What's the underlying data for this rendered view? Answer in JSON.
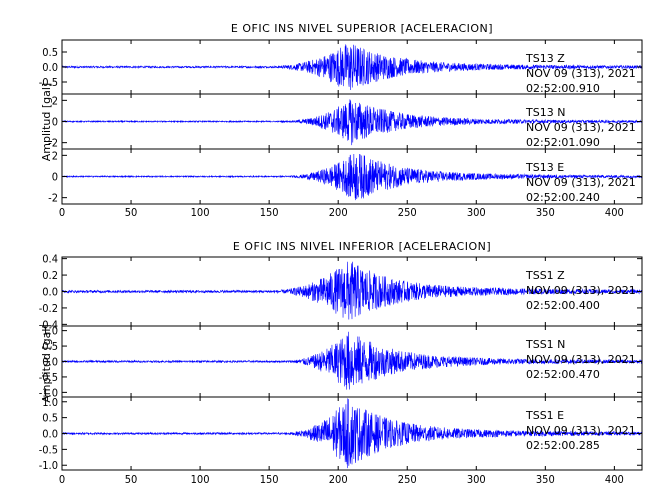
{
  "chart_data": [
    {
      "type": "line",
      "title": "E OFIC INS NIVEL SUPERIOR [ACELERACION]",
      "ylabel": "Amplitud [gal]",
      "xlim": [
        0,
        420
      ],
      "x_ticks": [
        "0",
        "50",
        "100",
        "150",
        "200",
        "250",
        "300",
        "350",
        "400"
      ],
      "grid": false,
      "series": [
        {
          "station": "TS13",
          "component": "Z",
          "date": "NOV 09 (313), 2021",
          "time": "02:52:00.910",
          "ylim": [
            -0.9,
            0.9
          ],
          "y_ticks": [
            {
              "v": 0.5,
              "t": "0.5"
            },
            {
              "v": 0.0,
              "t": "0.0"
            },
            {
              "v": -0.5,
              "t": "-0.5"
            }
          ],
          "color": "#0000ff",
          "envelope": {
            "onset": 150,
            "peak_time": 208,
            "peak_amplitude": 0.85,
            "baseline_noise": 0.03
          }
        },
        {
          "station": "TS13",
          "component": "N",
          "date": "NOV 09 (313), 2021",
          "time": "02:52:01.090",
          "ylim": [
            -2.6,
            2.6
          ],
          "y_ticks": [
            {
              "v": 2,
              "t": "2"
            },
            {
              "v": 0,
              "t": "0"
            },
            {
              "v": -2,
              "t": "-2"
            }
          ],
          "color": "#0000ff",
          "envelope": {
            "onset": 160,
            "peak_time": 210,
            "peak_amplitude": 2.2,
            "baseline_noise": 0.06
          }
        },
        {
          "station": "TS13",
          "component": "E",
          "date": "NOV 09 (313), 2021",
          "time": "02:52:00.240",
          "ylim": [
            -2.6,
            2.6
          ],
          "y_ticks": [
            {
              "v": 2,
              "t": "2"
            },
            {
              "v": 0,
              "t": "0"
            },
            {
              "v": -2,
              "t": "-2"
            }
          ],
          "color": "#0000ff",
          "envelope": {
            "onset": 160,
            "peak_time": 213,
            "peak_amplitude": 2.4,
            "baseline_noise": 0.06
          }
        }
      ]
    },
    {
      "type": "line",
      "title": "E OFIC INS NIVEL INFERIOR [ACELERACION]",
      "ylabel": "Amplitud [gal]",
      "xlim": [
        0,
        420
      ],
      "x_ticks": [
        "0",
        "50",
        "100",
        "150",
        "200",
        "250",
        "300",
        "350",
        "400"
      ],
      "grid": false,
      "series": [
        {
          "station": "TSS1",
          "component": "Z",
          "date": "NOV 09 (313), 2021",
          "time": "02:52:00.400",
          "ylim": [
            -0.42,
            0.42
          ],
          "y_ticks": [
            {
              "v": 0.4,
              "t": "0.4"
            },
            {
              "v": 0.2,
              "t": "0.2"
            },
            {
              "v": 0.0,
              "t": "0.0"
            },
            {
              "v": -0.2,
              "t": "-0.2"
            },
            {
              "v": -0.4,
              "t": "-0.4"
            }
          ],
          "color": "#0000ff",
          "envelope": {
            "onset": 150,
            "peak_time": 208,
            "peak_amplitude": 0.38,
            "baseline_noise": 0.015
          }
        },
        {
          "station": "TSS1",
          "component": "N",
          "date": "NOV 09 (313), 2021",
          "time": "02:52:00.470",
          "ylim": [
            -1.15,
            1.15
          ],
          "y_ticks": [
            {
              "v": 1.0,
              "t": "1.0"
            },
            {
              "v": 0.5,
              "t": "0.5"
            },
            {
              "v": 0.0,
              "t": "0.0"
            },
            {
              "v": -0.5,
              "t": "-0.5"
            },
            {
              "v": -1.0,
              "t": "-1.0"
            }
          ],
          "color": "#0000ff",
          "envelope": {
            "onset": 160,
            "peak_time": 208,
            "peak_amplitude": 1.0,
            "baseline_noise": 0.03
          }
        },
        {
          "station": "TSS1",
          "component": "E",
          "date": "NOV 09 (313), 2021",
          "time": "02:52:00.285",
          "ylim": [
            -1.15,
            1.15
          ],
          "y_ticks": [
            {
              "v": 1.0,
              "t": "1.0"
            },
            {
              "v": 0.5,
              "t": "0.5"
            },
            {
              "v": 0.0,
              "t": "0.0"
            },
            {
              "v": -0.5,
              "t": "-0.5"
            },
            {
              "v": -1.0,
              "t": "-1.0"
            }
          ],
          "color": "#0000ff",
          "envelope": {
            "onset": 160,
            "peak_time": 207,
            "peak_amplitude": 1.1,
            "baseline_noise": 0.03
          }
        }
      ]
    }
  ]
}
